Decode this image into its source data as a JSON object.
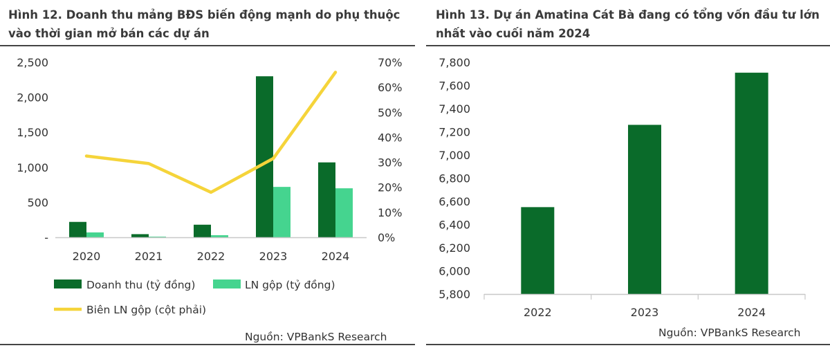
{
  "colors": {
    "dark_green": "#0a6b2a",
    "light_green": "#45d48f",
    "yellow": "#f5d43a",
    "axis": "#c8c8c8",
    "rule": "#444444"
  },
  "left_panel": {
    "title_line1": "Hình 12. Doanh thu mảng BĐS biến động mạnh do phụ thuộc",
    "title_line2": "vào thời gian mở bán các dự án",
    "source": "Nguồn: VPBankS Research"
  },
  "right_panel": {
    "title_line1": "Hình 13. Dự án Amatina Cát Bà đang có tổng vốn đầu tư lớn",
    "title_line2": "nhất vào cuối năm 2024",
    "source": "Nguồn: VPBankS Research"
  },
  "chart_data": [
    {
      "type": "bar",
      "title": "Hình 12. Doanh thu mảng BĐS biến động mạnh do phụ thuộc vào thời gian mở bán các dự án",
      "categories": [
        "2020",
        "2021",
        "2022",
        "2023",
        "2024"
      ],
      "series": [
        {
          "name": "Doanh thu (tỷ đồng)",
          "type": "bar",
          "axis": "left",
          "color": "#0a6b2a",
          "values": [
            220,
            45,
            180,
            2300,
            1070
          ]
        },
        {
          "name": "LN gộp (tỷ đồng)",
          "type": "bar",
          "axis": "left",
          "color": "#45d48f",
          "values": [
            70,
            10,
            30,
            720,
            700
          ]
        },
        {
          "name": "Biên LN gộp (cột phải)",
          "type": "line",
          "axis": "right",
          "color": "#f5d43a",
          "values": [
            32.5,
            29.5,
            18,
            31.5,
            66
          ]
        }
      ],
      "y_left": {
        "ylim": [
          0,
          2500
        ],
        "ticks": [
          "-",
          "500",
          "1,000",
          "1,500",
          "2,000",
          "2,500"
        ]
      },
      "y_right": {
        "ylim": [
          0,
          70
        ],
        "ticks": [
          "0%",
          "10%",
          "20%",
          "30%",
          "40%",
          "50%",
          "60%",
          "70%"
        ]
      },
      "legend": "bottom",
      "grid": false
    },
    {
      "type": "bar",
      "title": "Hình 13. Dự án Amatina Cát Bà đang có tổng vốn đầu tư lớn nhất vào cuối năm 2024",
      "categories": [
        "2022",
        "2023",
        "2024"
      ],
      "values": [
        6550,
        7260,
        7710
      ],
      "color": "#0a6b2a",
      "ylim": [
        5800,
        7800
      ],
      "y_ticks": [
        "5,800",
        "6,000",
        "6,200",
        "6,400",
        "6,600",
        "6,800",
        "7,000",
        "7,200",
        "7,400",
        "7,600",
        "7,800"
      ],
      "legend": "none",
      "grid": false
    }
  ]
}
